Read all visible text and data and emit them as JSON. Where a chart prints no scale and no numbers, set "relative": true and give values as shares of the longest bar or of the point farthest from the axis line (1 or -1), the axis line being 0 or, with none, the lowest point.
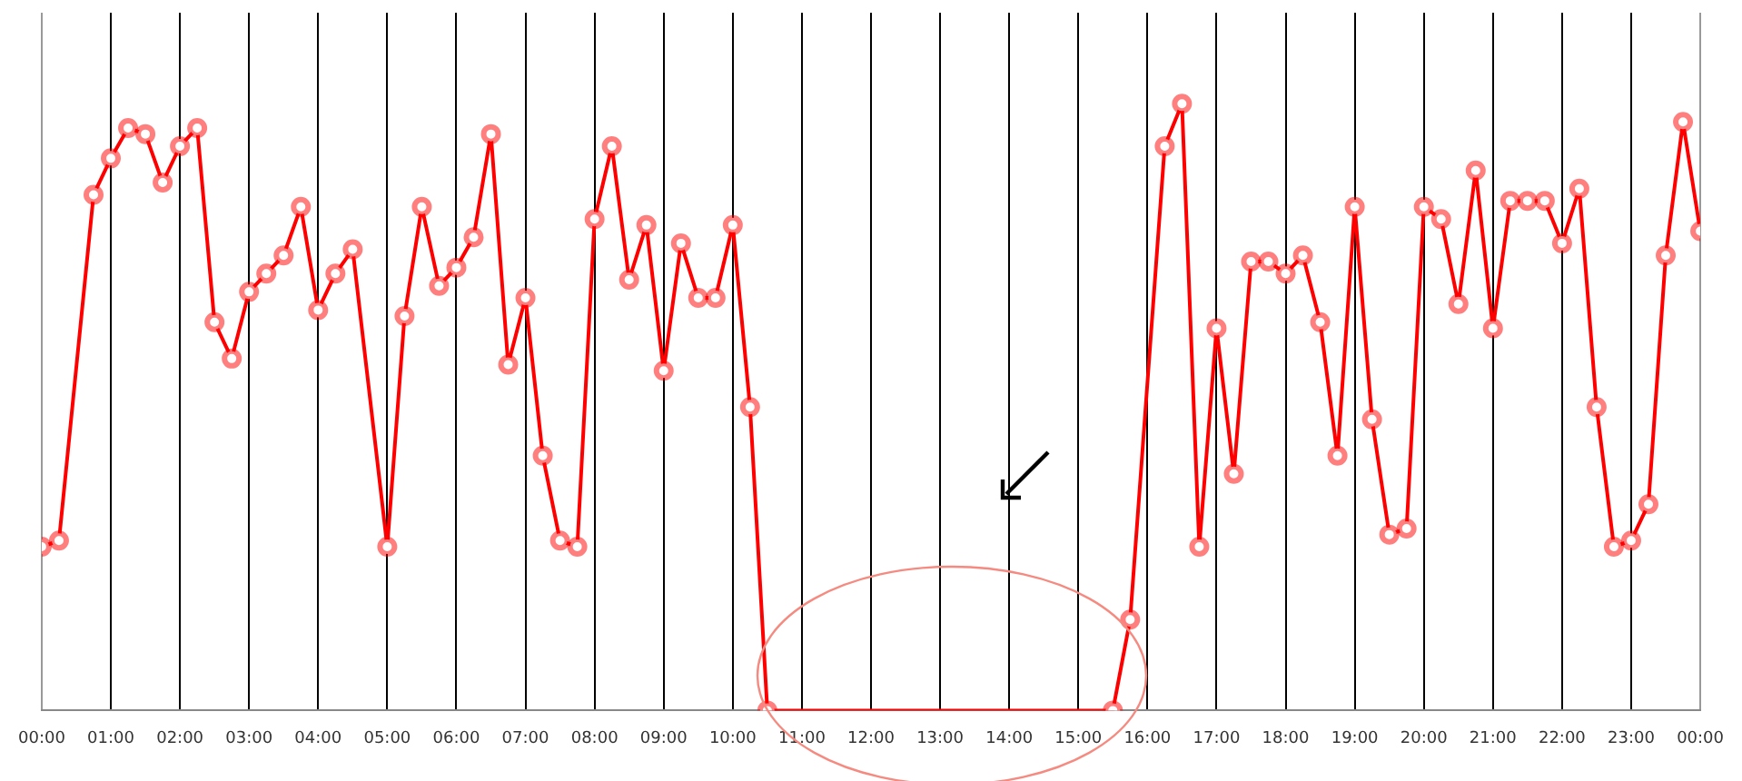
{
  "chart_data": {
    "type": "line",
    "relative": true,
    "x": [
      0,
      0.25,
      0.75,
      1,
      1.25,
      1.5,
      1.75,
      2,
      2.25,
      2.5,
      2.75,
      3,
      3.25,
      3.5,
      3.75,
      4,
      4.25,
      4.5,
      5,
      5.25,
      5.5,
      5.75,
      6,
      6.25,
      6.5,
      6.75,
      7,
      7.25,
      7.5,
      7.75,
      8,
      8.25,
      8.5,
      8.75,
      9,
      9.25,
      9.5,
      9.75,
      10,
      10.25,
      10.5,
      15.5,
      15.75,
      16.25,
      16.5,
      16.75,
      17,
      17.25,
      17.5,
      17.75,
      18,
      18.25,
      18.5,
      18.75,
      19,
      19.25,
      19.5,
      19.75,
      20,
      20.25,
      20.5,
      20.75,
      21,
      21.25,
      21.5,
      21.75,
      22,
      22.25,
      22.5,
      22.75,
      23,
      23.25,
      23.5,
      23.75,
      24
    ],
    "series": [
      {
        "color": "#ff0000",
        "values": [
          0.27,
          0.28,
          0.85,
          0.91,
          0.96,
          0.95,
          0.87,
          0.93,
          0.96,
          0.64,
          0.58,
          0.69,
          0.72,
          0.75,
          0.83,
          0.66,
          0.72,
          0.76,
          0.27,
          0.65,
          0.83,
          0.7,
          0.73,
          0.78,
          0.95,
          0.57,
          0.68,
          0.42,
          0.28,
          0.27,
          0.81,
          0.93,
          0.71,
          0.8,
          0.56,
          0.77,
          0.68,
          0.68,
          0.8,
          0.5,
          0,
          0,
          0.15,
          0.93,
          1,
          0.27,
          0.63,
          0.39,
          0.74,
          0.74,
          0.72,
          0.75,
          0.64,
          0.42,
          0.83,
          0.48,
          0.29,
          0.3,
          0.83,
          0.81,
          0.67,
          0.89,
          0.63,
          0.84,
          0.84,
          0.84,
          0.77,
          0.86,
          0.5,
          0.27,
          0.28,
          0.34,
          0.75,
          0.97,
          0.79
        ]
      }
    ],
    "xlim": [
      0,
      24
    ],
    "xticks": [
      {
        "value": 0,
        "label": "00:00"
      },
      {
        "value": 1,
        "label": "01:00"
      },
      {
        "value": 2,
        "label": "02:00"
      },
      {
        "value": 3,
        "label": "03:00"
      },
      {
        "value": 4,
        "label": "04:00"
      },
      {
        "value": 5,
        "label": "05:00"
      },
      {
        "value": 6,
        "label": "06:00"
      },
      {
        "value": 7,
        "label": "07:00"
      },
      {
        "value": 8,
        "label": "08:00"
      },
      {
        "value": 9,
        "label": "09:00"
      },
      {
        "value": 10,
        "label": "10:00"
      },
      {
        "value": 11,
        "label": "11:00"
      },
      {
        "value": 12,
        "label": "12:00"
      },
      {
        "value": 13,
        "label": "13:00"
      },
      {
        "value": 14,
        "label": "14:00"
      },
      {
        "value": 15,
        "label": "15:00"
      },
      {
        "value": 16,
        "label": "16:00"
      },
      {
        "value": 17,
        "label": "17:00"
      },
      {
        "value": 18,
        "label": "18:00"
      },
      {
        "value": 19,
        "label": "19:00"
      },
      {
        "value": 20,
        "label": "20:00"
      },
      {
        "value": 21,
        "label": "21:00"
      },
      {
        "value": 22,
        "label": "22:00"
      },
      {
        "value": 23,
        "label": "23:00"
      },
      {
        "value": 24,
        "label": "00:00"
      }
    ],
    "grid": "x",
    "marker": "circle",
    "line_style": "solid",
    "legend": false
  }
}
